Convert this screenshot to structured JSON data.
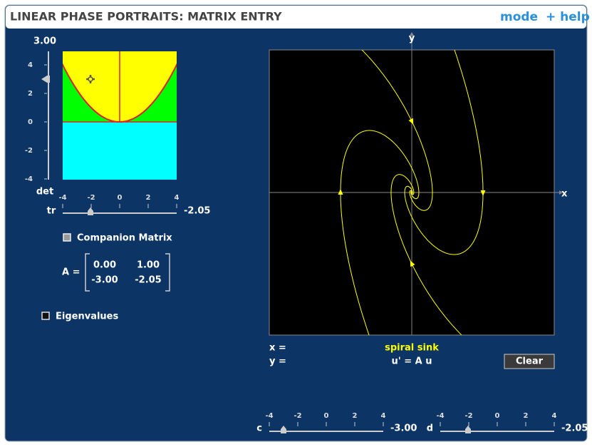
{
  "header": {
    "title": "LINEAR PHASE PORTRAITS: MATRIX ENTRY",
    "mode": "mode",
    "help": "+ help"
  },
  "trace_det": {
    "det_value": "3.00",
    "det_ticks": [
      "4",
      "2",
      "0",
      "-2",
      "-4"
    ],
    "det_label": "det",
    "tr_label": "tr",
    "tr_ticks": [
      "-4",
      "-2",
      "0",
      "2",
      "4"
    ],
    "tr_value": "-2.05"
  },
  "companion_matrix": {
    "label": "Companion Matrix"
  },
  "matrix": {
    "label": "A =",
    "rows": [
      [
        "0.00",
        "1.00"
      ],
      [
        "-3.00",
        "-2.05"
      ]
    ]
  },
  "eigenvalues": {
    "label": "Eigenvalues"
  },
  "phase_plot": {
    "y_axis": "y",
    "x_axis": "x",
    "x_readout": "x =",
    "y_readout": "y =",
    "classification": "spiral sink",
    "equation": "u' = A u"
  },
  "clear_button": "Clear",
  "sliders": {
    "c": {
      "label": "c",
      "ticks": [
        "-4",
        "-2",
        "0",
        "2",
        "4"
      ],
      "value": "-3.00"
    },
    "d": {
      "label": "d",
      "ticks": [
        "-4",
        "-2",
        "0",
        "2",
        "4"
      ],
      "value": "-2.05"
    }
  }
}
